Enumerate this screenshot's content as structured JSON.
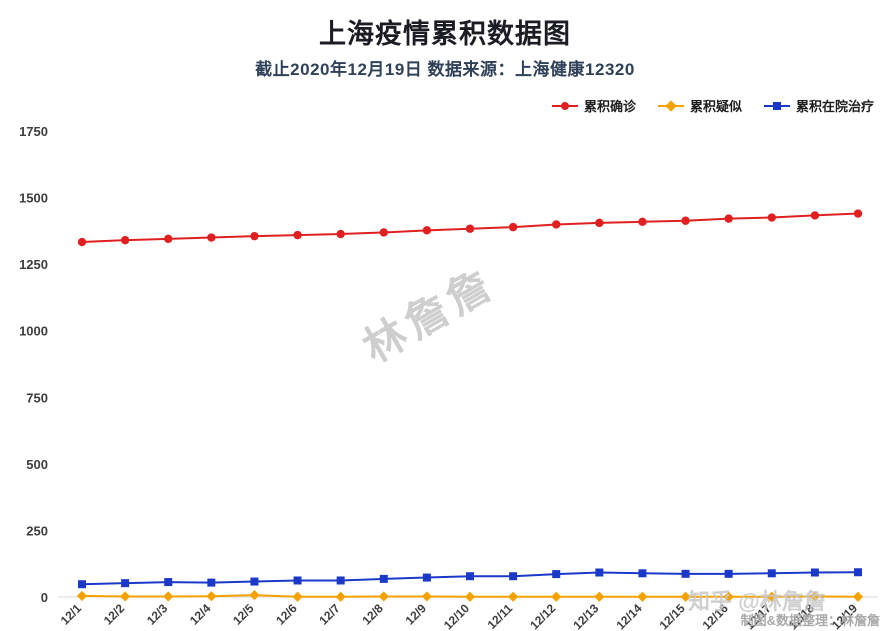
{
  "header": {
    "title": "上海疫情累积数据图",
    "subtitle": "截止2020年12月19日 数据来源：上海健康12320"
  },
  "watermarks": {
    "center": "林詹詹",
    "zhihu": "知乎 @林詹詹",
    "credit": "制图&数据整理：林詹詹"
  },
  "chart_data": {
    "type": "line",
    "title": "上海疫情累积数据图",
    "subtitle": "截止2020年12月19日 数据来源：上海健康12320",
    "categories": [
      "12/1",
      "12/2",
      "12/3",
      "12/4",
      "12/5",
      "12/6",
      "12/7",
      "12/8",
      "12/9",
      "12/10",
      "12/11",
      "12/12",
      "12/13",
      "12/14",
      "12/15",
      "12/16",
      "12/17",
      "12/18",
      "12/19"
    ],
    "series": [
      {
        "name": "累积确诊",
        "color": "#e02020",
        "marker": "circle",
        "values": [
          1333,
          1340,
          1345,
          1350,
          1355,
          1359,
          1363,
          1369,
          1377,
          1383,
          1389,
          1399,
          1405,
          1409,
          1413,
          1421,
          1425,
          1433,
          1440
        ]
      },
      {
        "name": "累积疑似",
        "color": "#f5a100",
        "marker": "diamond",
        "values": [
          4,
          2,
          2,
          3,
          7,
          1,
          1,
          2,
          2,
          1,
          1,
          1,
          1,
          1,
          1,
          1,
          1,
          2,
          1
        ]
      },
      {
        "name": "累积在院治疗",
        "color": "#1b39c8",
        "marker": "square",
        "values": [
          48,
          52,
          56,
          54,
          58,
          62,
          62,
          68,
          73,
          78,
          78,
          86,
          92,
          89,
          87,
          87,
          89,
          92,
          93
        ]
      }
    ],
    "xlabel": "",
    "ylabel": "",
    "ylim": [
      0,
      1750
    ],
    "yticks": [
      0,
      250,
      500,
      750,
      1000,
      1250,
      1500,
      1750
    ],
    "grid": false,
    "legend_position": "top-right",
    "axis_text_color": "#3d3d3d",
    "baseline_color": "#d8d8d8"
  }
}
